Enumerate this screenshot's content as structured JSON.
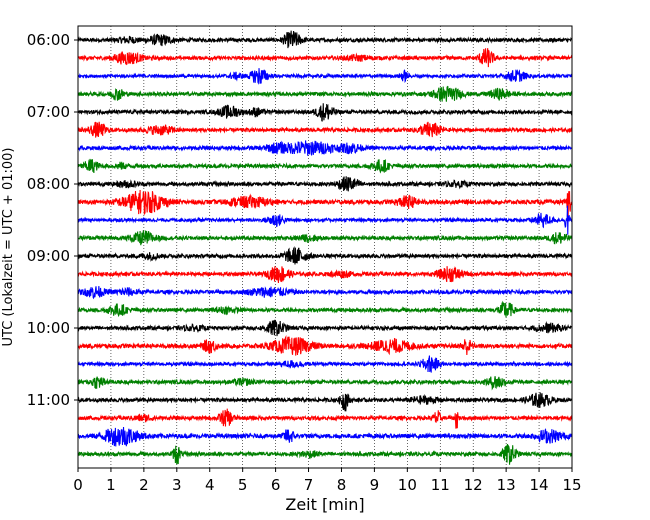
{
  "chart_data": {
    "type": "line",
    "title": "",
    "xlabel": "Zeit  [min]",
    "ylabel": "UTC (Lokalzeit = UTC + 01:00)",
    "xlim": [
      0,
      15
    ],
    "x_ticks": [
      0,
      1,
      2,
      3,
      4,
      5,
      6,
      7,
      8,
      9,
      10,
      11,
      12,
      13,
      14,
      15
    ],
    "x_tick_labels": [
      "0",
      "1",
      "2",
      "3",
      "4",
      "5",
      "6",
      "7",
      "8",
      "9",
      "10",
      "11",
      "12",
      "13",
      "14",
      "15"
    ],
    "y_tick_labels": [
      "06:00",
      "07:00",
      "08:00",
      "09:00",
      "10:00",
      "11:00"
    ],
    "grid": "vertical dotted lines at each minute",
    "trace_interval_minutes": 15,
    "series_colors": [
      "#000000",
      "#ff0000",
      "#0000ff",
      "#008000"
    ],
    "traces": [
      {
        "start": "06:00",
        "color": "#000000",
        "noise": 0.35,
        "bursts": [
          [
            2.5,
            0.35,
            0.9
          ],
          [
            6.5,
            0.25,
            1.6
          ],
          [
            1.5,
            0.3,
            0.5
          ]
        ]
      },
      {
        "start": "06:15",
        "color": "#ff0000",
        "noise": 0.35,
        "bursts": [
          [
            1.5,
            0.4,
            1.1
          ],
          [
            12.4,
            0.2,
            1.7
          ],
          [
            8.5,
            0.4,
            0.4
          ]
        ]
      },
      {
        "start": "06:30",
        "color": "#0000ff",
        "noise": 0.3,
        "bursts": [
          [
            5.5,
            0.25,
            1.5
          ],
          [
            9.9,
            0.12,
            0.9
          ],
          [
            13.3,
            0.3,
            1.0
          ],
          [
            4.8,
            0.2,
            0.5
          ]
        ]
      },
      {
        "start": "06:45",
        "color": "#008000",
        "noise": 0.35,
        "bursts": [
          [
            1.2,
            0.2,
            1.0
          ],
          [
            11.2,
            0.4,
            1.4
          ],
          [
            12.8,
            0.3,
            0.9
          ]
        ]
      },
      {
        "start": "07:00",
        "color": "#000000",
        "noise": 0.35,
        "bursts": [
          [
            4.6,
            0.3,
            1.1
          ],
          [
            7.5,
            0.25,
            1.6
          ],
          [
            5.4,
            0.2,
            0.7
          ]
        ]
      },
      {
        "start": "07:15",
        "color": "#ff0000",
        "noise": 0.35,
        "bursts": [
          [
            0.6,
            0.25,
            1.3
          ],
          [
            2.5,
            0.4,
            0.8
          ],
          [
            10.7,
            0.3,
            1.4
          ]
        ]
      },
      {
        "start": "07:30",
        "color": "#0000ff",
        "noise": 0.35,
        "bursts": [
          [
            7.0,
            0.8,
            1.2
          ],
          [
            8.3,
            0.3,
            0.8
          ],
          [
            6.0,
            0.3,
            0.6
          ]
        ]
      },
      {
        "start": "07:45",
        "color": "#008000",
        "noise": 0.35,
        "bursts": [
          [
            0.4,
            0.2,
            1.2
          ],
          [
            9.2,
            0.25,
            1.1
          ],
          [
            1.3,
            0.2,
            0.5
          ]
        ]
      },
      {
        "start": "08:00",
        "color": "#000000",
        "noise": 0.35,
        "bursts": [
          [
            8.2,
            0.3,
            1.3
          ],
          [
            1.5,
            0.3,
            0.5
          ],
          [
            11.5,
            0.3,
            0.4
          ]
        ]
      },
      {
        "start": "08:15",
        "color": "#ff0000",
        "noise": 0.4,
        "bursts": [
          [
            2.0,
            0.6,
            2.1
          ],
          [
            5.2,
            0.6,
            0.9
          ],
          [
            10.0,
            0.3,
            1.0
          ],
          [
            14.9,
            0.05,
            3.5
          ]
        ]
      },
      {
        "start": "08:30",
        "color": "#0000ff",
        "noise": 0.3,
        "bursts": [
          [
            6.0,
            0.25,
            1.1
          ],
          [
            14.1,
            0.25,
            1.2
          ],
          [
            14.85,
            0.05,
            3.8
          ]
        ]
      },
      {
        "start": "08:45",
        "color": "#008000",
        "noise": 0.35,
        "bursts": [
          [
            2.0,
            0.35,
            1.2
          ],
          [
            7.0,
            0.3,
            0.5
          ],
          [
            14.6,
            0.25,
            1.0
          ]
        ]
      },
      {
        "start": "09:00",
        "color": "#000000",
        "noise": 0.35,
        "bursts": [
          [
            6.6,
            0.35,
            1.4
          ],
          [
            2.2,
            0.3,
            0.5
          ]
        ]
      },
      {
        "start": "09:15",
        "color": "#ff0000",
        "noise": 0.35,
        "bursts": [
          [
            6.1,
            0.3,
            1.5
          ],
          [
            11.3,
            0.35,
            1.3
          ],
          [
            8.0,
            0.3,
            0.5
          ]
        ]
      },
      {
        "start": "09:30",
        "color": "#0000ff",
        "noise": 0.35,
        "bursts": [
          [
            0.5,
            0.3,
            1.0
          ],
          [
            5.8,
            0.6,
            0.8
          ],
          [
            1.5,
            0.3,
            0.6
          ]
        ]
      },
      {
        "start": "09:45",
        "color": "#008000",
        "noise": 0.35,
        "bursts": [
          [
            1.2,
            0.3,
            1.0
          ],
          [
            13.0,
            0.2,
            1.6
          ],
          [
            4.5,
            0.3,
            0.5
          ]
        ]
      },
      {
        "start": "10:00",
        "color": "#000000",
        "noise": 0.35,
        "bursts": [
          [
            6.0,
            0.3,
            1.3
          ],
          [
            14.3,
            0.4,
            0.7
          ],
          [
            3.5,
            0.3,
            0.4
          ]
        ]
      },
      {
        "start": "10:15",
        "color": "#ff0000",
        "noise": 0.4,
        "bursts": [
          [
            6.5,
            0.6,
            1.5
          ],
          [
            4.0,
            0.2,
            1.1
          ],
          [
            9.5,
            0.6,
            1.1
          ],
          [
            11.8,
            0.15,
            1.4
          ]
        ]
      },
      {
        "start": "10:30",
        "color": "#0000ff",
        "noise": 0.3,
        "bursts": [
          [
            10.7,
            0.25,
            1.5
          ],
          [
            6.5,
            0.4,
            0.5
          ]
        ]
      },
      {
        "start": "10:45",
        "color": "#008000",
        "noise": 0.35,
        "bursts": [
          [
            0.6,
            0.2,
            1.1
          ],
          [
            12.7,
            0.25,
            1.2
          ],
          [
            5.0,
            0.3,
            0.5
          ]
        ]
      },
      {
        "start": "11:00",
        "color": "#000000",
        "noise": 0.35,
        "bursts": [
          [
            8.1,
            0.12,
            2.0
          ],
          [
            14.0,
            0.35,
            1.2
          ],
          [
            10.5,
            0.4,
            0.6
          ]
        ]
      },
      {
        "start": "11:15",
        "color": "#ff0000",
        "noise": 0.35,
        "bursts": [
          [
            4.5,
            0.2,
            1.5
          ],
          [
            10.9,
            0.1,
            1.4
          ],
          [
            11.5,
            0.05,
            2.5
          ],
          [
            2.0,
            0.3,
            0.5
          ]
        ]
      },
      {
        "start": "11:30",
        "color": "#0000ff",
        "noise": 0.4,
        "bursts": [
          [
            1.3,
            0.5,
            1.8
          ],
          [
            6.4,
            0.15,
            1.3
          ],
          [
            14.3,
            0.4,
            1.1
          ]
        ]
      },
      {
        "start": "11:45",
        "color": "#008000",
        "noise": 0.35,
        "bursts": [
          [
            3.0,
            0.1,
            2.0
          ],
          [
            13.1,
            0.2,
            1.8
          ],
          [
            7.0,
            0.3,
            0.5
          ]
        ]
      }
    ]
  }
}
